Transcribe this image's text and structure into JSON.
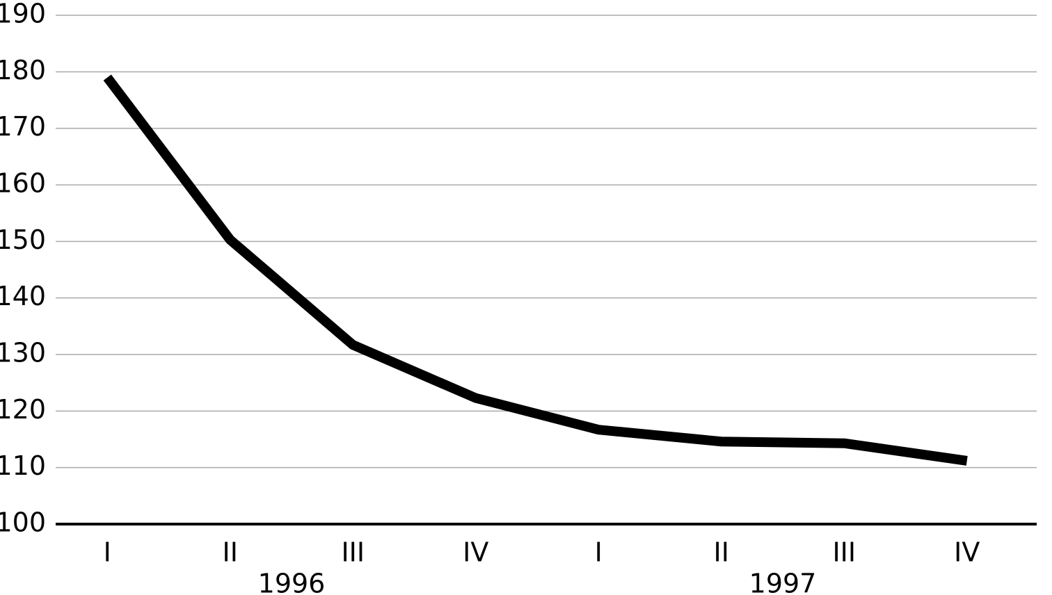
{
  "chart_data": {
    "type": "line",
    "categories": [
      "I",
      "II",
      "III",
      "IV",
      "I",
      "II",
      "III",
      "IV"
    ],
    "groups": [
      "1996",
      "1997"
    ],
    "series": [
      {
        "color": "#000000",
        "values": [
          179,
          150.3,
          131.7,
          122.3,
          116.7,
          114.6,
          114.3,
          111.2
        ]
      }
    ],
    "ylim": [
      100,
      190
    ],
    "yticks": [
      100,
      110,
      120,
      130,
      140,
      150,
      160,
      170,
      180,
      190
    ],
    "grid": true
  }
}
